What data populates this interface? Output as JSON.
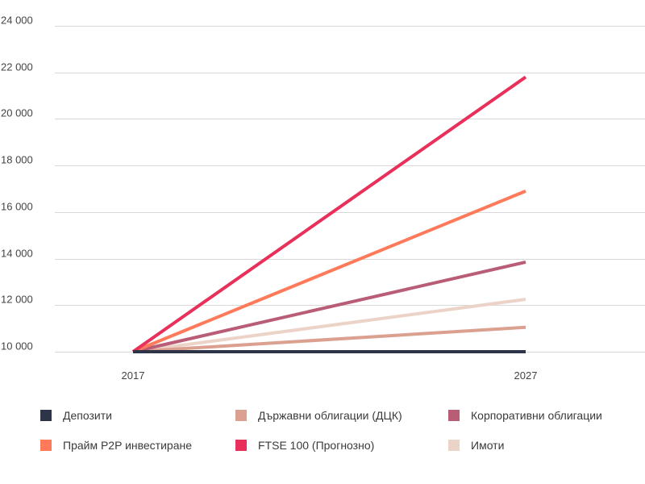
{
  "chart_data": {
    "type": "line",
    "title": "",
    "xlabel": "",
    "ylabel": "",
    "categories": [
      "2017",
      "2027"
    ],
    "ylim": [
      10000,
      24000
    ],
    "y_ticks": [
      {
        "value": 10000,
        "label": "10 000"
      },
      {
        "value": 12000,
        "label": "12 000"
      },
      {
        "value": 14000,
        "label": "14 000"
      },
      {
        "value": 16000,
        "label": "16 000"
      },
      {
        "value": 18000,
        "label": "18 000"
      },
      {
        "value": 20000,
        "label": "20 000"
      },
      {
        "value": 22000,
        "label": "22 000"
      },
      {
        "value": 24000,
        "label": "24 000"
      }
    ],
    "grid": true,
    "series": [
      {
        "name": "Депозити",
        "color": "#2e3447",
        "values": [
          10000,
          10000
        ]
      },
      {
        "name": "Държавни облигации (ДЦК)",
        "color": "#dba090",
        "values": [
          10000,
          11050
        ]
      },
      {
        "name": "Корпоративни облигации",
        "color": "#b95c76",
        "values": [
          10000,
          13850
        ]
      },
      {
        "name": "Прайм P2P инвестиране",
        "color": "#ff7a5a",
        "values": [
          10000,
          16900
        ]
      },
      {
        "name": "FTSE 100 (Прогнозно)",
        "color": "#e8305a",
        "values": [
          10000,
          21800
        ]
      },
      {
        "name": "Имоти",
        "color": "#ecd3c8",
        "values": [
          10000,
          12250
        ]
      }
    ]
  }
}
